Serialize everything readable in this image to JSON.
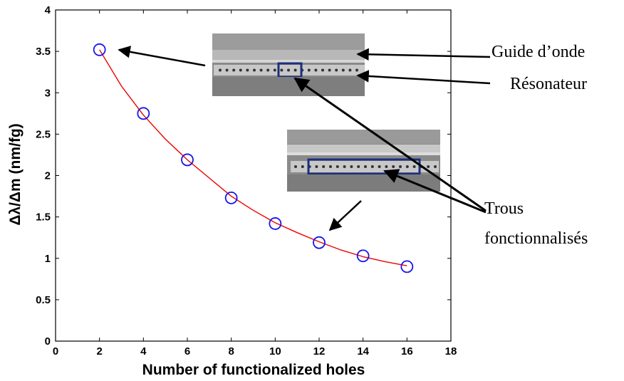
{
  "chart_data": {
    "type": "scatter",
    "title": "",
    "xlabel": "Number of functionalized holes",
    "ylabel": "Δλ/Δm (nm/fg)",
    "xlim": [
      0,
      18
    ],
    "ylim": [
      0,
      4
    ],
    "x_ticks": [
      "0",
      "2",
      "4",
      "6",
      "8",
      "10",
      "12",
      "14",
      "16",
      "18"
    ],
    "y_ticks": [
      "0",
      "0.5",
      "1",
      "1.5",
      "2",
      "2.5",
      "3",
      "3.5",
      "4"
    ],
    "grid": false,
    "series": [
      {
        "marker": "circle",
        "x": [
          2,
          4,
          6,
          8,
          10,
          12,
          14,
          16
        ],
        "y": [
          3.52,
          2.75,
          2.19,
          1.73,
          1.42,
          1.19,
          1.03,
          0.9
        ]
      }
    ],
    "fit": {
      "x": [
        2,
        3,
        4,
        5,
        6,
        7,
        8,
        9,
        10,
        11,
        12,
        13,
        14,
        15,
        16
      ],
      "y": [
        3.52,
        3.08,
        2.73,
        2.44,
        2.19,
        1.97,
        1.75,
        1.58,
        1.43,
        1.31,
        1.2,
        1.1,
        1.02,
        0.96,
        0.91
      ]
    },
    "annotations": [
      "Guide d’onde",
      "Résonateur",
      "Trous",
      "fonctionnalisés"
    ]
  },
  "colors": {
    "marker": "#1515ee",
    "fit_line": "#ee0000",
    "axis": "#000000",
    "sem_background": "#8a8a8a"
  }
}
